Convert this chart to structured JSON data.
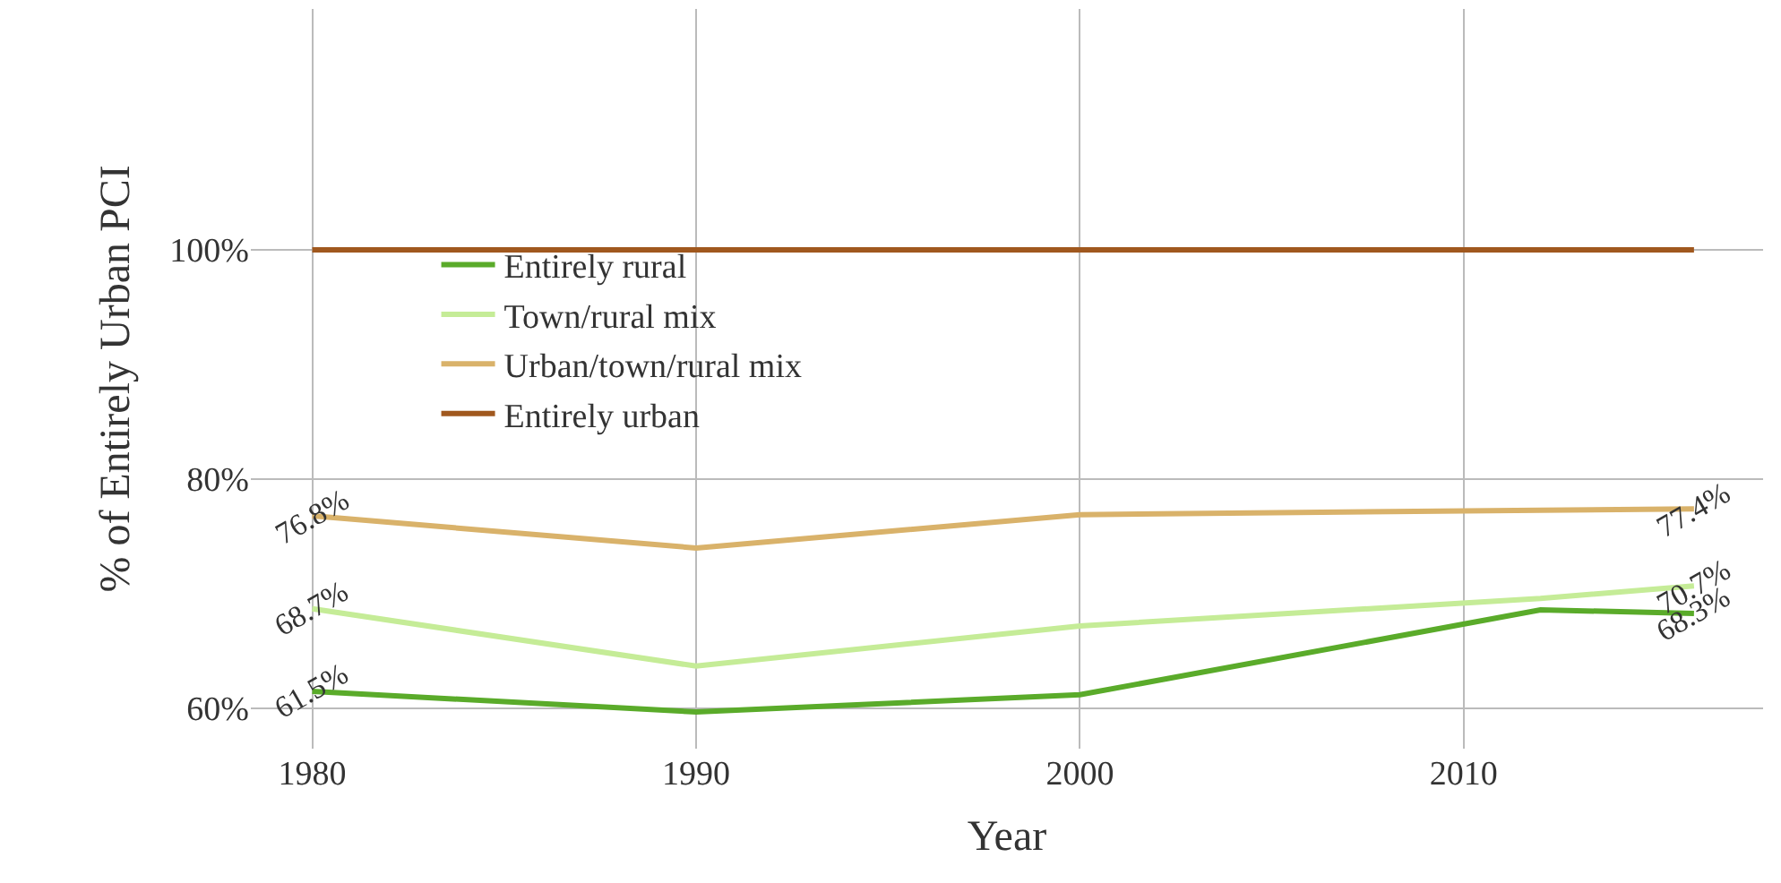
{
  "chart_data": {
    "type": "line",
    "xlabel": "Year",
    "ylabel": "% of Entirely Urban PCI",
    "x": [
      1980,
      1990,
      2000,
      2012,
      2016
    ],
    "series": [
      {
        "name": "Entirely rural",
        "color": "#5aab2a",
        "values": [
          61.5,
          59.7,
          61.2,
          68.6,
          68.3
        ],
        "value_labels": [
          "61.5%",
          null,
          null,
          null,
          "68.3%"
        ]
      },
      {
        "name": "Town/rural mix",
        "color": "#c5ec97",
        "values": [
          68.7,
          63.7,
          67.2,
          69.6,
          70.7
        ],
        "value_labels": [
          "68.7%",
          null,
          null,
          null,
          "70.7%"
        ]
      },
      {
        "name": "Urban/town/rural mix",
        "color": "#d9b26a",
        "values": [
          76.8,
          74.0,
          76.9,
          77.3,
          77.4
        ],
        "value_labels": [
          "76.8%",
          null,
          null,
          null,
          "77.4%"
        ]
      },
      {
        "name": "Entirely urban",
        "color": "#a0581e",
        "values": [
          100,
          100,
          100,
          100,
          100
        ]
      }
    ],
    "xlim": [
      1978.4,
      2017.8
    ],
    "xticks": [
      1980,
      1990,
      2000,
      2010
    ],
    "ylim": [
      56.5,
      121
    ],
    "yticks": [
      {
        "value": 60,
        "label": "60%"
      },
      {
        "value": 80,
        "label": "80%"
      },
      {
        "value": 100,
        "label": "100%"
      }
    ],
    "grid": true,
    "legend": "top left",
    "marker": "none",
    "line_style": "solid"
  }
}
